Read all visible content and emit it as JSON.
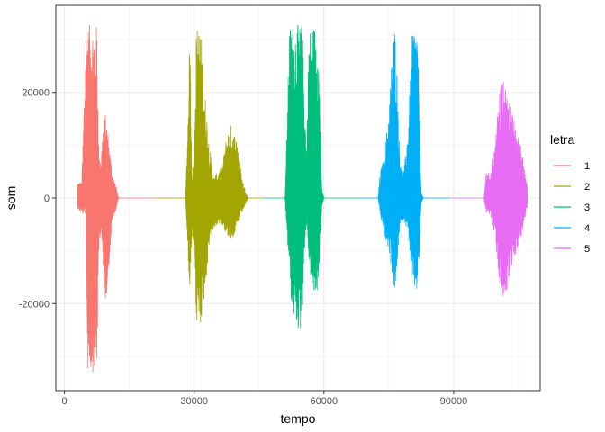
{
  "chart_data": {
    "type": "line",
    "xlabel": "tempo",
    "ylabel": "som",
    "xlim": [
      -2000,
      110000
    ],
    "ylim": [
      -36500,
      36500
    ],
    "x_ticks": [
      0,
      30000,
      60000,
      90000
    ],
    "x_tick_labels": [
      "0",
      "30000",
      "60000",
      "90000"
    ],
    "y_ticks": [
      -20000,
      0,
      20000
    ],
    "y_tick_labels": [
      "-20000",
      "0",
      "20000"
    ],
    "grid": true,
    "legend": {
      "title": "letra",
      "position": "right"
    },
    "series": [
      {
        "name": "1",
        "color": "#F8766D",
        "x_range": [
          3000,
          21000
        ],
        "envelope": [
          [
            3000,
            3000,
            -2000
          ],
          [
            4000,
            3000,
            -3000
          ],
          [
            5000,
            32800,
            -3000
          ],
          [
            5300,
            32800,
            -33000
          ],
          [
            7500,
            32800,
            -33000
          ],
          [
            8000,
            7000,
            -9000
          ],
          [
            8500,
            8500,
            -6000
          ],
          [
            9000,
            15000,
            -16000
          ],
          [
            9500,
            16000,
            -20000
          ],
          [
            10000,
            13000,
            -16000
          ],
          [
            11000,
            5000,
            -5000
          ],
          [
            12000,
            2000,
            -2000
          ],
          [
            12500,
            0,
            0
          ],
          [
            21000,
            0,
            0
          ]
        ]
      },
      {
        "name": "2",
        "color": "#A3A500",
        "x_range": [
          21000,
          46000
        ],
        "envelope": [
          [
            21000,
            0,
            0
          ],
          [
            28000,
            0,
            0
          ],
          [
            28500,
            14000,
            -9000
          ],
          [
            29000,
            32800,
            -19000
          ],
          [
            29500,
            4000,
            -7000
          ],
          [
            30000,
            9000,
            -11000
          ],
          [
            30500,
            32000,
            -24000
          ],
          [
            31500,
            32800,
            -24000
          ],
          [
            32500,
            20000,
            -18000
          ],
          [
            33500,
            10000,
            -9000
          ],
          [
            34500,
            4000,
            -6000
          ],
          [
            35500,
            5000,
            -5000
          ],
          [
            36500,
            6000,
            -5000
          ],
          [
            37500,
            12000,
            -7000
          ],
          [
            38500,
            14000,
            -8000
          ],
          [
            40000,
            11000,
            -6000
          ],
          [
            41000,
            4000,
            -3000
          ],
          [
            42000,
            1000,
            -1000
          ],
          [
            42500,
            0,
            0
          ],
          [
            46000,
            0,
            0
          ]
        ]
      },
      {
        "name": "3",
        "color": "#00BF7D",
        "x_range": [
          46000,
          68000
        ],
        "envelope": [
          [
            46000,
            0,
            0
          ],
          [
            51000,
            0,
            0
          ],
          [
            51500,
            15000,
            -8000
          ],
          [
            52000,
            32800,
            -13000
          ],
          [
            52500,
            32800,
            -21000
          ],
          [
            53500,
            32800,
            -24000
          ],
          [
            54500,
            32800,
            -26000
          ],
          [
            55000,
            32800,
            -22000
          ],
          [
            55500,
            20000,
            -10000
          ],
          [
            56000,
            8000,
            -5000
          ],
          [
            56500,
            32000,
            -12000
          ],
          [
            57500,
            32800,
            -19000
          ],
          [
            58500,
            32800,
            -18000
          ],
          [
            59000,
            22000,
            -12000
          ],
          [
            59500,
            2000,
            -2000
          ],
          [
            60000,
            0,
            0
          ],
          [
            68000,
            0,
            0
          ]
        ]
      },
      {
        "name": "4",
        "color": "#00B0F6",
        "x_range": [
          68000,
          89000
        ],
        "envelope": [
          [
            68000,
            0,
            0
          ],
          [
            72500,
            0,
            0
          ],
          [
            73000,
            5000,
            -3000
          ],
          [
            74000,
            8000,
            -8000
          ],
          [
            75000,
            17000,
            -10000
          ],
          [
            76000,
            31000,
            -16000
          ],
          [
            76500,
            32800,
            -19500
          ],
          [
            77000,
            22000,
            -12000
          ],
          [
            77500,
            8000,
            -6000
          ],
          [
            78500,
            5000,
            -4000
          ],
          [
            79500,
            14000,
            -7000
          ],
          [
            80500,
            32800,
            -17000
          ],
          [
            81500,
            32800,
            -18000
          ],
          [
            82000,
            20000,
            -12000
          ],
          [
            82500,
            1000,
            -1000
          ],
          [
            83000,
            0,
            0
          ],
          [
            89000,
            0,
            0
          ]
        ]
      },
      {
        "name": "5",
        "color": "#E76BF3",
        "x_range": [
          89000,
          107000
        ],
        "envelope": [
          [
            89000,
            0,
            0
          ],
          [
            97000,
            0,
            0
          ],
          [
            97500,
            5000,
            -3000
          ],
          [
            98500,
            5000,
            -3000
          ],
          [
            99500,
            10000,
            -7000
          ],
          [
            100500,
            21000,
            -16000
          ],
          [
            101500,
            22000,
            -20000
          ],
          [
            102500,
            19000,
            -17000
          ],
          [
            103500,
            17000,
            -13000
          ],
          [
            104500,
            13000,
            -10000
          ],
          [
            105500,
            10000,
            -8000
          ],
          [
            106500,
            5000,
            -4000
          ],
          [
            107000,
            3000,
            -2000
          ]
        ]
      }
    ]
  }
}
